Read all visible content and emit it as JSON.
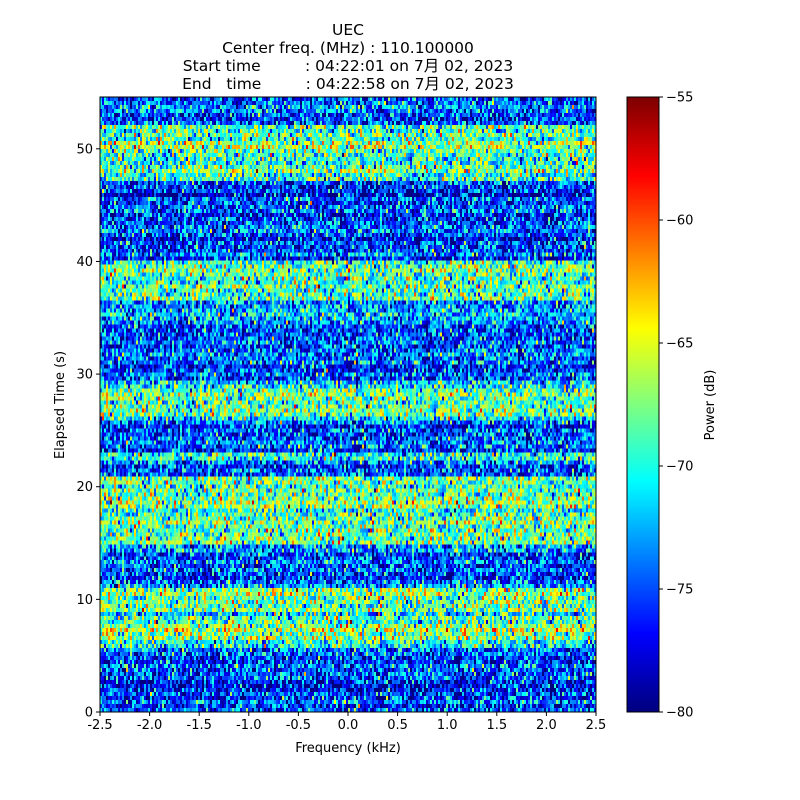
{
  "chart_data": {
    "type": "heatmap",
    "title_lines": [
      "UEC",
      "Center freq. (MHz) : 110.100000",
      "Start time         : 04:22:01 on 7月 02, 2023",
      "End   time         : 04:22:58 on 7月 02, 2023"
    ],
    "xlabel": "Frequency (kHz)",
    "ylabel": "Elapsed Time (s)",
    "xlim": [
      -2.5,
      2.5
    ],
    "ylim": [
      0,
      54.6
    ],
    "xticks": [
      "-2.5",
      "-2.0",
      "-1.5",
      "-1.0",
      "-0.5",
      "0.0",
      "0.5",
      "1.0",
      "1.5",
      "2.0",
      "2.5"
    ],
    "yticks": [
      "0",
      "10",
      "20",
      "30",
      "40",
      "50"
    ],
    "colorbar": {
      "label": "Power (dB)",
      "range": [
        -80,
        -55
      ],
      "ticks": [
        "−80",
        "−75",
        "−70",
        "−65",
        "−60",
        "−55"
      ],
      "colormap": "jet"
    },
    "grid": {
      "freq_bins": 248,
      "time_bins": 154
    },
    "background_level_db": -75,
    "noise_std_db": 3.5,
    "high_power_bands": [
      {
        "t_start": 5.5,
        "t_end": 11.0,
        "level_db": -68.5
      },
      {
        "t_start": 15.0,
        "t_end": 21.0,
        "level_db": -68.5
      },
      {
        "t_start": 22.4,
        "t_end": 23.0,
        "level_db": -69.5
      },
      {
        "t_start": 26.0,
        "t_end": 29.5,
        "level_db": -69
      },
      {
        "t_start": 36.5,
        "t_end": 40.0,
        "level_db": -69
      },
      {
        "t_start": 47.2,
        "t_end": 52.0,
        "level_db": -69
      }
    ]
  }
}
